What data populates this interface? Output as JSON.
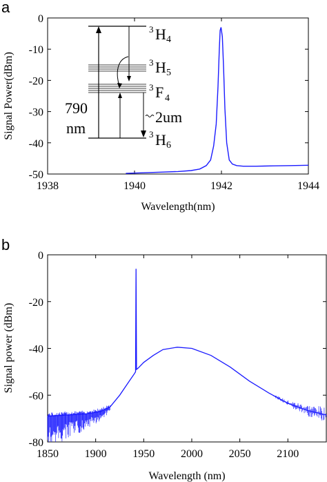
{
  "chart_data": [
    {
      "panel_label": "a",
      "type": "line",
      "xlabel": "Wavelength(nm)",
      "ylabel": "Signal Power(dBm)",
      "xlim": [
        1938,
        1944
      ],
      "ylim": [
        -50,
        0
      ],
      "xticks": [
        "1938",
        "1940",
        "1942",
        "1944"
      ],
      "yticks": [
        "0",
        "-10",
        "-20",
        "-30",
        "-40",
        "-50"
      ],
      "grid": false,
      "series": [
        {
          "color": "#1a1aff",
          "x": [
            1939.8,
            1940.2,
            1940.6,
            1941.0,
            1941.3,
            1941.5,
            1941.65,
            1941.75,
            1941.82,
            1941.88,
            1941.92,
            1941.95,
            1941.97,
            1941.99,
            1942.02,
            1942.05,
            1942.08,
            1942.12,
            1942.18,
            1942.25,
            1942.35,
            1942.5,
            1942.8,
            1943.2,
            1943.6,
            1944.0
          ],
          "y": [
            -49.8,
            -49.6,
            -49.4,
            -49.2,
            -48.9,
            -48.4,
            -47.3,
            -45.5,
            -41,
            -34,
            -22,
            -10,
            -4,
            -3,
            -6,
            -16,
            -29,
            -40,
            -45.5,
            -46.8,
            -47.3,
            -47.5,
            -47.5,
            -47.4,
            -47.3,
            -47.2
          ]
        }
      ],
      "inset": {
        "levels": [
          "3H4",
          "3H5",
          "3F4",
          "3H6"
        ],
        "level_labels": [
          {
            "base": "H",
            "sup": "3",
            "sub": "4"
          },
          {
            "base": "H",
            "sup": "3",
            "sub": "5"
          },
          {
            "base": "F",
            "sup": "3",
            "sub": "4"
          },
          {
            "base": "H",
            "sup": "3",
            "sub": "6"
          }
        ],
        "pump_label_1": "790",
        "pump_label_2": "nm",
        "emission_label": "2um"
      }
    },
    {
      "panel_label": "b",
      "type": "line",
      "xlabel": "Wavelength (nm)",
      "ylabel": "Signal power (dBm)",
      "xlim": [
        1850,
        2140
      ],
      "ylim": [
        -80,
        0
      ],
      "xticks": [
        "1850",
        "1900",
        "1950",
        "2000",
        "2050",
        "2100"
      ],
      "yticks": [
        "0",
        "-20",
        "-40",
        "-60",
        "-80"
      ],
      "grid": false,
      "series": [
        {
          "color": "#1a1aff",
          "x": [
            1850,
            1870,
            1890,
            1905,
            1915,
            1925,
            1935,
            1940,
            1941.5,
            1942,
            1942.5,
            1944,
            1950,
            1960,
            1970,
            1985,
            2000,
            2020,
            2040,
            2060,
            2080,
            2100,
            2120,
            2140
          ],
          "y": [
            -69,
            -68.5,
            -68,
            -67,
            -65,
            -60,
            -54,
            -51,
            -50,
            -6,
            -49,
            -48.5,
            -46,
            -43,
            -40.5,
            -39.5,
            -40,
            -43,
            -48,
            -54,
            -59,
            -63.5,
            -66.5,
            -68.5
          ]
        }
      ]
    }
  ]
}
